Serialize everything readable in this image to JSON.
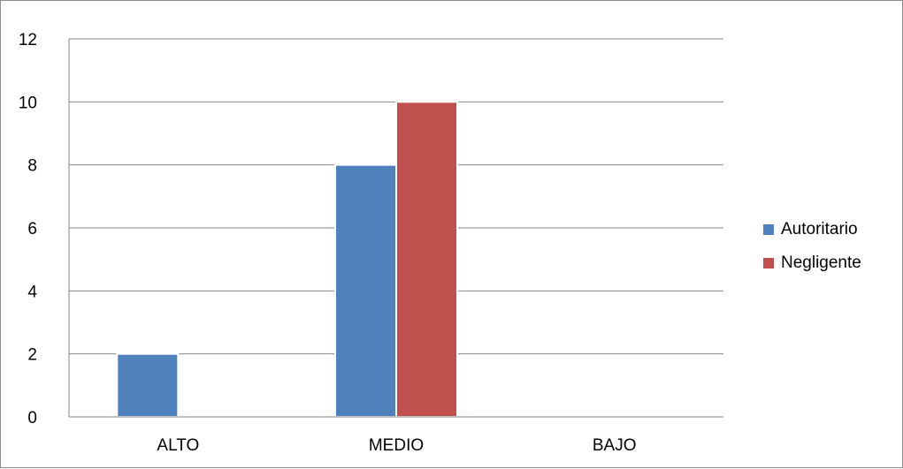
{
  "chart_data": {
    "type": "bar",
    "categories": [
      "ALTO",
      "MEDIO",
      "BAJO"
    ],
    "series": [
      {
        "name": "Autoritario",
        "values": [
          2,
          8,
          0
        ],
        "color": "#4f81bd"
      },
      {
        "name": "Negligente",
        "values": [
          0,
          10,
          0
        ],
        "color": "#c0504d"
      }
    ],
    "ylim": [
      0,
      12
    ],
    "yticks": [
      0,
      2,
      4,
      6,
      8,
      10,
      12
    ],
    "grid": true,
    "legend": "right"
  }
}
